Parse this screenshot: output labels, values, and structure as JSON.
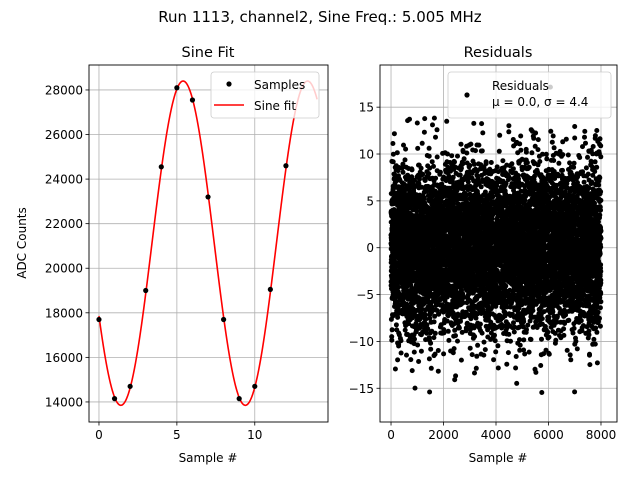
{
  "suptitle": "Run 1113, channel2, Sine Freq.: 5.005 MHz",
  "chart_data": [
    {
      "type": "line",
      "title": "Sine Fit",
      "xlabel": "Sample #",
      "ylabel": "ADC Counts",
      "xlim": [
        -0.64,
        14.7
      ],
      "ylim": [
        13100,
        29120
      ],
      "xticks": [
        0,
        5,
        10
      ],
      "xtick_labels": [
        "0",
        "5",
        "10"
      ],
      "yticks": [
        14000,
        16000,
        18000,
        20000,
        22000,
        24000,
        26000,
        28000
      ],
      "ytick_labels": [
        "14000",
        "16000",
        "18000",
        "20000",
        "22000",
        "24000",
        "26000",
        "28000"
      ],
      "grid": true,
      "legend": {
        "placement": "upper-right",
        "entries": [
          "Samples",
          "Sine fit"
        ]
      },
      "samples": {
        "name": "Samples",
        "color": "#000000",
        "x": [
          0,
          1,
          2,
          3,
          4,
          5,
          6,
          7,
          8,
          9,
          10,
          11,
          12
        ],
        "y": [
          17700,
          14150,
          14700,
          19000,
          24550,
          28100,
          27550,
          23200,
          17700,
          14150,
          14700,
          19050,
          24600
        ]
      },
      "fit": {
        "name": "Sine fit",
        "color": "#ff0000",
        "offset": 21125,
        "amplitude": 7275,
        "period_samples": 7.99,
        "peak_at": 5.4,
        "x_range": [
          0,
          14
        ]
      }
    },
    {
      "type": "scatter",
      "title": "Residuals",
      "xlabel": "Sample #",
      "ylabel": "",
      "xlim": [
        -420,
        8610
      ],
      "ylim": [
        -18.6,
        19.5
      ],
      "xticks": [
        0,
        2000,
        4000,
        6000,
        8000
      ],
      "xtick_labels": [
        "0",
        "2000",
        "4000",
        "6000",
        "8000"
      ],
      "yticks": [
        -15,
        -10,
        -5,
        0,
        5,
        10,
        15
      ],
      "ytick_labels": [
        "−15",
        "−10",
        "−5",
        "0",
        "5",
        "10",
        "15"
      ],
      "grid": true,
      "legend": {
        "placement": "upper-right",
        "entries": [
          "Residuals",
          "μ = 0.0, σ = 4.4"
        ]
      },
      "n_points": 8000,
      "mean": 0.0,
      "sigma": 4.4,
      "color": "#000000"
    }
  ]
}
